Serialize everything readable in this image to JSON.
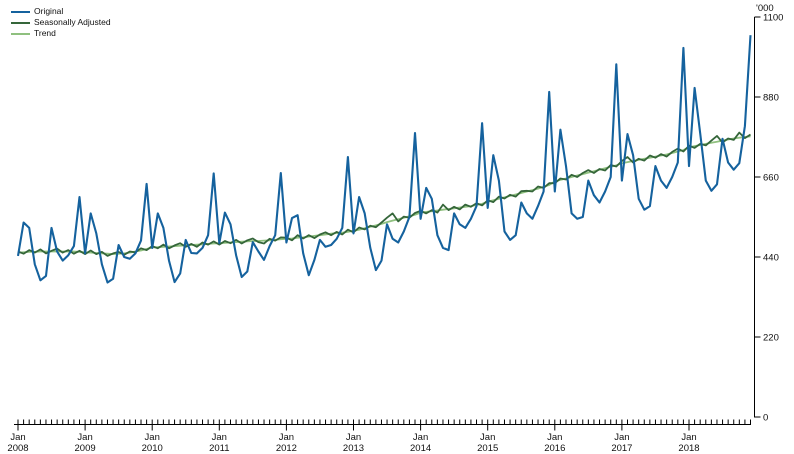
{
  "legend": {
    "items": [
      {
        "label": "Original",
        "color": "#15629E"
      },
      {
        "label": "Seasonally Adjusted",
        "color": "#35663A"
      },
      {
        "label": "Trend",
        "color": "#8FC07F"
      }
    ]
  },
  "y_axis": {
    "unit_label": "'000",
    "ticks": [
      1100,
      880,
      660,
      440,
      220,
      0
    ],
    "min": 0,
    "max": 1100
  },
  "x_axis": {
    "tick_month_label": "Jan",
    "years": [
      "2008",
      "2009",
      "2010",
      "2011",
      "2012",
      "2013",
      "2014",
      "2015",
      "2016",
      "2017",
      "2018"
    ],
    "minor_tick_unit": "month"
  },
  "chart_data": {
    "type": "line",
    "title": "",
    "x_start": "Jan 2008",
    "x_end": "Dec 2018",
    "frequency": "monthly",
    "n_points": 132,
    "ylabel": "'000",
    "ylim": [
      0,
      1100
    ],
    "grid": false,
    "legend_position": "top-left",
    "series": [
      {
        "name": "Original",
        "color": "#15629E",
        "values": [
          443,
          535,
          520,
          420,
          376,
          388,
          520,
          455,
          430,
          445,
          470,
          605,
          450,
          560,
          505,
          420,
          370,
          380,
          473,
          440,
          435,
          450,
          485,
          641,
          465,
          560,
          520,
          430,
          371,
          395,
          487,
          451,
          450,
          465,
          500,
          670,
          478,
          562,
          530,
          445,
          385,
          400,
          481,
          455,
          432,
          470,
          500,
          671,
          480,
          547,
          555,
          450,
          390,
          432,
          487,
          468,
          473,
          490,
          520,
          715,
          505,
          605,
          560,
          465,
          404,
          430,
          530,
          490,
          480,
          510,
          550,
          781,
          545,
          630,
          600,
          500,
          465,
          459,
          560,
          530,
          520,
          545,
          580,
          808,
          575,
          720,
          650,
          510,
          487,
          500,
          590,
          560,
          545,
          580,
          620,
          894,
          620,
          790,
          690,
          560,
          545,
          550,
          650,
          610,
          590,
          620,
          660,
          970,
          650,
          778,
          720,
          600,
          570,
          580,
          690,
          650,
          630,
          660,
          700,
          1015,
          690,
          905,
          780,
          650,
          622,
          640,
          765,
          700,
          680,
          698,
          800,
          1050
        ]
      },
      {
        "name": "Seasonally Adjusted",
        "color": "#35663A",
        "values": [
          455,
          449,
          459,
          452,
          461,
          450,
          457,
          463,
          452,
          459,
          449,
          457,
          448,
          458,
          448,
          454,
          443,
          450,
          454,
          446,
          455,
          453,
          464,
          459,
          470,
          464,
          474,
          464,
          472,
          478,
          468,
          476,
          468,
          480,
          474,
          483,
          474,
          484,
          478,
          487,
          477,
          486,
          491,
          481,
          477,
          490,
          485,
          494,
          493,
          486,
          500,
          491,
          500,
          492,
          502,
          508,
          500,
          509,
          502,
          515,
          508,
          521,
          516,
          526,
          522,
          535,
          548,
          560,
          538,
          551,
          548,
          561,
          567,
          560,
          569,
          562,
          584,
          569,
          578,
          571,
          584,
          578,
          588,
          582,
          596,
          591,
          606,
          601,
          611,
          606,
          621,
          622,
          620,
          634,
          630,
          643,
          643,
          656,
          653,
          666,
          660,
          671,
          679,
          671,
          682,
          678,
          693,
          689,
          704,
          715,
          700,
          710,
          705,
          719,
          713,
          723,
          716,
          729,
          738,
          730,
          746,
          740,
          751,
          747,
          760,
          773,
          755,
          766,
          762,
          782,
          767,
          777
        ]
      },
      {
        "name": "Trend",
        "color": "#8FC07F",
        "values": [
          452,
          453,
          454,
          454,
          455,
          455,
          455,
          455,
          455,
          455,
          455,
          454,
          453,
          452,
          451,
          450,
          449,
          448,
          449,
          450,
          452,
          455,
          458,
          462,
          466,
          467,
          468,
          469,
          470,
          471,
          472,
          473,
          474,
          475,
          476,
          477,
          478,
          479,
          480,
          481,
          482,
          483,
          484,
          484,
          485,
          486,
          487,
          489,
          490,
          491,
          493,
          494,
          496,
          498,
          500,
          502,
          504,
          506,
          507,
          509,
          512,
          515,
          519,
          523,
          527,
          531,
          536,
          540,
          544,
          548,
          552,
          556,
          562,
          564,
          566,
          568,
          570,
          572,
          574,
          576,
          578,
          580,
          583,
          586,
          592,
          596,
          600,
          604,
          608,
          612,
          616,
          620,
          624,
          628,
          633,
          638,
          648,
          652,
          656,
          660,
          664,
          668,
          672,
          676,
          680,
          684,
          688,
          692,
          698,
          701,
          704,
          707,
          710,
          713,
          716,
          719,
          722,
          726,
          730,
          734,
          742,
          745,
          748,
          751,
          754,
          757,
          760,
          763,
          766,
          768,
          770,
          772
        ]
      }
    ]
  },
  "colors": {
    "axis": "#000000",
    "background": "#ffffff",
    "text": "#111111"
  }
}
